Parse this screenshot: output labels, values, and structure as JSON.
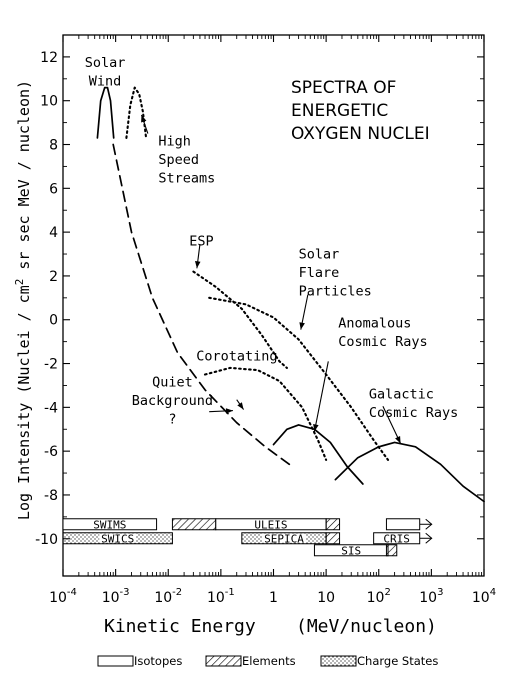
{
  "chart_data": {
    "type": "line",
    "title": [
      "SPECTRA OF",
      "ENERGETIC",
      "OXYGEN NUCLEI"
    ],
    "xlabel_left": "Kinetic Energy",
    "xlabel_right": "(MeV/nucleon)",
    "ylabel_a": "Log Intensity (Nuclei / cm",
    "ylabel_sup": "2",
    "ylabel_b": " sr sec MeV / nucleon)",
    "x_log": true,
    "xlim": [
      0.0001,
      10000
    ],
    "ylim": [
      -11.7,
      13
    ],
    "x_ticks": [
      {
        "v": 0.0001,
        "base": "10",
        "exp": "-4"
      },
      {
        "v": 0.001,
        "base": "10",
        "exp": "-3"
      },
      {
        "v": 0.01,
        "base": "10",
        "exp": "-2"
      },
      {
        "v": 0.1,
        "base": "10",
        "exp": "-1"
      },
      {
        "v": 1,
        "base": "1",
        "exp": ""
      },
      {
        "v": 10,
        "base": "10",
        "exp": ""
      },
      {
        "v": 100,
        "base": "10",
        "exp": "2"
      },
      {
        "v": 1000,
        "base": "10",
        "exp": "3"
      },
      {
        "v": 10000,
        "base": "10",
        "exp": "4"
      }
    ],
    "y_ticks": [
      {
        "v": 12,
        "label": "12"
      },
      {
        "v": 10,
        "label": "10"
      },
      {
        "v": 8,
        "label": "8"
      },
      {
        "v": 6,
        "label": "6"
      },
      {
        "v": 4,
        "label": "4"
      },
      {
        "v": 2,
        "label": "2"
      },
      {
        "v": 0,
        "label": "0"
      },
      {
        "v": -2,
        "label": "-2"
      },
      {
        "v": -4,
        "label": "-4"
      },
      {
        "v": -6,
        "label": "-6"
      },
      {
        "v": -8,
        "label": "-8"
      },
      {
        "v": -10,
        "label": "-10"
      }
    ],
    "series": [
      {
        "id": "solar-wind",
        "style": "solid",
        "points": [
          [
            0.00045,
            8.3
          ],
          [
            0.00052,
            10.0
          ],
          [
            0.00062,
            10.6
          ],
          [
            0.0007,
            10.6
          ],
          [
            0.0008,
            10.0
          ],
          [
            0.00092,
            8.3
          ]
        ]
      },
      {
        "id": "high-speed-streams",
        "style": "dotted",
        "points": [
          [
            0.0016,
            8.3
          ],
          [
            0.0019,
            9.8
          ],
          [
            0.0023,
            10.6
          ],
          [
            0.0028,
            10.3
          ],
          [
            0.0033,
            9.5
          ],
          [
            0.0038,
            8.3
          ]
        ]
      },
      {
        "id": "quiet-background",
        "style": "dashed",
        "points": [
          [
            0.0009,
            8.0
          ],
          [
            0.002,
            4.0
          ],
          [
            0.005,
            1.0
          ],
          [
            0.015,
            -1.5
          ],
          [
            0.05,
            -3.2
          ],
          [
            0.2,
            -4.7
          ],
          [
            0.7,
            -5.8
          ],
          [
            2.0,
            -6.6
          ]
        ]
      },
      {
        "id": "esp",
        "style": "dotted",
        "points": [
          [
            0.03,
            2.2
          ],
          [
            0.08,
            1.5
          ],
          [
            0.25,
            0.5
          ],
          [
            0.6,
            -0.7
          ],
          [
            1.3,
            -1.9
          ],
          [
            1.8,
            -2.2
          ]
        ]
      },
      {
        "id": "corotating",
        "style": "dotted",
        "points": [
          [
            0.05,
            -2.5
          ],
          [
            0.15,
            -2.2
          ],
          [
            0.5,
            -2.3
          ],
          [
            1.3,
            -2.8
          ],
          [
            3.5,
            -4.0
          ],
          [
            7.0,
            -5.5
          ],
          [
            10,
            -6.4
          ]
        ]
      },
      {
        "id": "solar-flare-particles",
        "style": "dotted",
        "points": [
          [
            0.06,
            1.0
          ],
          [
            0.3,
            0.7
          ],
          [
            1.0,
            0.1
          ],
          [
            3.0,
            -0.9
          ],
          [
            10,
            -2.5
          ],
          [
            30,
            -4.0
          ],
          [
            80,
            -5.5
          ],
          [
            150,
            -6.4
          ]
        ]
      },
      {
        "id": "anomalous-cosmic-rays",
        "style": "solid",
        "points": [
          [
            1.0,
            -5.7
          ],
          [
            1.8,
            -5.0
          ],
          [
            3.0,
            -4.8
          ],
          [
            6.0,
            -5.0
          ],
          [
            12,
            -5.6
          ],
          [
            25,
            -6.7
          ],
          [
            50,
            -7.5
          ]
        ]
      },
      {
        "id": "galactic-cosmic-rays",
        "style": "solid",
        "points": [
          [
            15,
            -7.3
          ],
          [
            40,
            -6.3
          ],
          [
            100,
            -5.8
          ],
          [
            200,
            -5.6
          ],
          [
            500,
            -5.8
          ],
          [
            1500,
            -6.6
          ],
          [
            4000,
            -7.6
          ],
          [
            10000,
            -8.3
          ]
        ]
      }
    ],
    "annotations": [
      {
        "lines": [
          "Solar",
          "Wind"
        ],
        "anchor": "middle",
        "x": 0.00063,
        "y": 11.55
      },
      {
        "lines": [
          "High",
          "Speed",
          "Streams"
        ],
        "anchor": "start",
        "x": 0.0065,
        "y": 7.95
      },
      {
        "lines": [
          "ESP"
        ],
        "anchor": "start",
        "x": 0.025,
        "y": 3.4
      },
      {
        "lines": [
          "Solar",
          "Flare",
          "Particles"
        ],
        "anchor": "start",
        "x": 3.0,
        "y": 2.8
      },
      {
        "lines": [
          "Anomalous",
          "Cosmic Rays"
        ],
        "anchor": "start",
        "x": 17,
        "y": -0.35
      },
      {
        "lines": [
          "Corotating"
        ],
        "anchor": "start",
        "x": 0.034,
        "y": -1.85
      },
      {
        "lines": [
          "Quiet",
          "Background",
          "?"
        ],
        "anchor": "middle",
        "x": 0.012,
        "y": -3.05
      },
      {
        "lines": [
          "Galactic",
          "Cosmic Rays"
        ],
        "anchor": "start",
        "x": 65,
        "y": -3.6
      }
    ],
    "arrows": [
      {
        "from": [
          0.0041,
          8.5
        ],
        "to": [
          0.0031,
          9.35
        ]
      },
      {
        "from": [
          0.04,
          3.45
        ],
        "to": [
          0.035,
          2.35
        ]
      },
      {
        "from": [
          4.5,
          1.15
        ],
        "to": [
          3.3,
          -0.45
        ]
      },
      {
        "from": [
          11,
          -1.9
        ],
        "to": [
          6.0,
          -5.1
        ]
      },
      {
        "from": [
          0.2,
          -3.65
        ],
        "to": [
          0.27,
          -4.1
        ]
      },
      {
        "from": [
          0.06,
          -4.2
        ],
        "to": [
          0.17,
          -4.15
        ]
      },
      {
        "from": [
          120,
          -3.95
        ],
        "to": [
          260,
          -5.65
        ]
      }
    ],
    "instruments_y": -10,
    "instruments": [
      {
        "label": "SWIMS",
        "x0": 0.0001,
        "x1": 0.006,
        "row": "upper",
        "fill": "isotopes"
      },
      {
        "label": "SWICS",
        "x0": 0.0001,
        "x1": 0.012,
        "row": "lower",
        "fill": "charge"
      },
      {
        "label": "",
        "x0": 0.012,
        "x1": 0.08,
        "row": "upper",
        "fill": "elements"
      },
      {
        "label": "ULEIS",
        "x0": 0.08,
        "x1": 10,
        "row": "upper",
        "fill": "isotopes"
      },
      {
        "label": "",
        "x0": 10,
        "x1": 18,
        "row": "upper",
        "fill": "elements"
      },
      {
        "label": "SEPICA",
        "x0": 0.25,
        "x1": 10,
        "row": "lower",
        "fill": "charge"
      },
      {
        "label": "",
        "x0": 10,
        "x1": 18,
        "row": "lower",
        "fill": "elements"
      },
      {
        "label": "SIS",
        "x0": 6,
        "x1": 150,
        "row": "third",
        "fill": "isotopes"
      },
      {
        "label": "CRIS",
        "x0": 80,
        "x1": 600,
        "row": "lower",
        "fill": "isotopes",
        "arrow": true
      },
      {
        "label": "",
        "x0": 140,
        "x1": 600,
        "row": "upper",
        "fill": "isotopes",
        "arrow": true
      },
      {
        "label": "",
        "x0": 140,
        "x1": 220,
        "row": "third",
        "fill": "elements"
      }
    ],
    "legend": [
      {
        "label": "Isotopes",
        "fill": "isotopes"
      },
      {
        "label": "Elements",
        "fill": "elements"
      },
      {
        "label": "Charge States",
        "fill": "charge"
      }
    ],
    "colors": {
      "ink": "#000000",
      "paper": "#ffffff"
    }
  }
}
